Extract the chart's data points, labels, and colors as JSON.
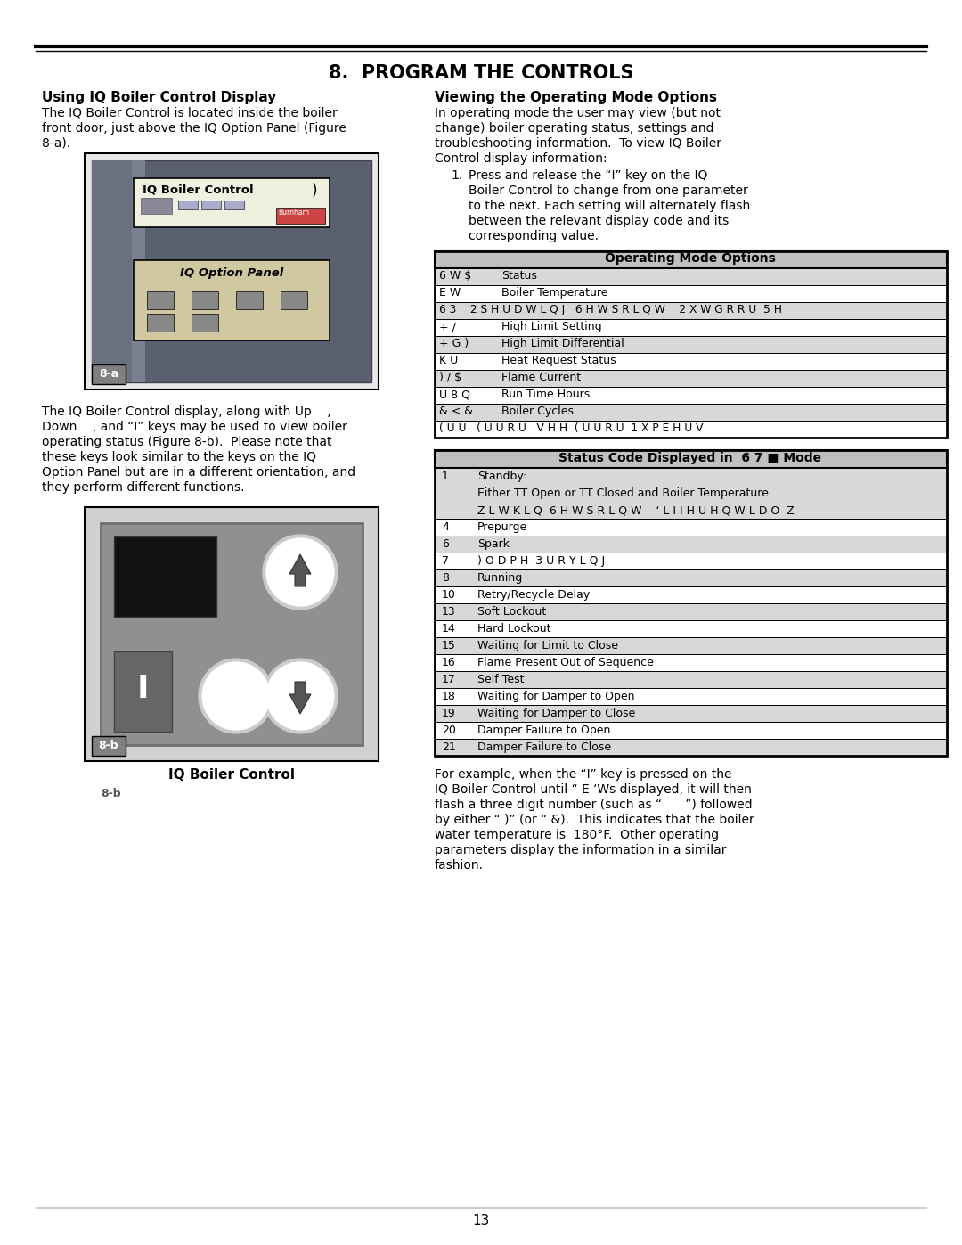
{
  "title": "8.  PROGRAM THE CONTROLS",
  "left_heading": "Using IQ Boiler Control Display",
  "right_heading": "Viewing the Operating Mode Options",
  "left_para1": [
    "The IQ Boiler Control is located inside the boiler",
    "front door, just above the IQ Option Panel (Figure",
    "8-a)."
  ],
  "left_para2": [
    "The IQ Boiler Control display, along with Up    ,",
    "Down    , and “I” keys may be used to view boiler",
    "operating status (Figure 8-b).  Please note that",
    "these keys look similar to the keys on the IQ",
    "Option Panel but are in a different orientation, and",
    "they perform different functions."
  ],
  "right_para1": [
    "In operating mode the user may view (but not",
    "change) boiler operating status, settings and",
    "troubleshooting information.  To view IQ Boiler",
    "Control display information:"
  ],
  "right_list1": [
    "Press and release the “I” key on the IQ",
    "Boiler Control to change from one parameter",
    "to the next. Each setting will alternately flash",
    "between the relevant display code and its",
    "corresponding value."
  ],
  "op_mode_title": "Operating Mode Options",
  "op_mode_rows": [
    {
      "code": "6 W $",
      "desc": "Status",
      "shaded": true
    },
    {
      "code": "E W",
      "desc": "Boiler Temperature",
      "shaded": false
    },
    {
      "code": "6 3    2 S H U D W L Q J   6 H W S R L Q W    2 X W G R R U  5 H",
      "desc": "",
      "shaded": true
    },
    {
      "code": "+ /",
      "desc": "High Limit Setting",
      "shaded": false
    },
    {
      "code": "+ G )",
      "desc": "High Limit Differential",
      "shaded": true
    },
    {
      "code": "K U",
      "desc": "Heat Request Status",
      "shaded": false
    },
    {
      "code": ") / $",
      "desc": "Flame Current",
      "shaded": true
    },
    {
      "code": "U 8 Q",
      "desc": "Run Time Hours",
      "shaded": false
    },
    {
      "code": "& < &",
      "desc": "Boiler Cycles",
      "shaded": true
    },
    {
      "code": "( U U   ( U U R U   V H H  ( U U R U  1 X P E H U V",
      "desc": "",
      "shaded": false
    }
  ],
  "status_title": "Status Code Displayed in  6 7 ■ Mode",
  "status_rows": [
    {
      "code": "1",
      "desc": "Standby:\nEither TT Open or TT Closed and Boiler Temperature\nZ L W K L Q  6 H W S R L Q W    ‘ L I I H U H Q W L D O  Z",
      "shaded": true
    },
    {
      "code": "4",
      "desc": "Prepurge",
      "shaded": false
    },
    {
      "code": "6",
      "desc": "Spark",
      "shaded": true
    },
    {
      "code": "7",
      "desc": ") O D P H  3 U R Y L Q J",
      "shaded": false
    },
    {
      "code": "8",
      "desc": "Running",
      "shaded": true
    },
    {
      "code": "10",
      "desc": "Retry/Recycle Delay",
      "shaded": false
    },
    {
      "code": "13",
      "desc": "Soft Lockout",
      "shaded": true
    },
    {
      "code": "14",
      "desc": "Hard Lockout",
      "shaded": false
    },
    {
      "code": "15",
      "desc": "Waiting for Limit to Close",
      "shaded": true
    },
    {
      "code": "16",
      "desc": "Flame Present Out of Sequence",
      "shaded": false
    },
    {
      "code": "17",
      "desc": "Self Test",
      "shaded": true
    },
    {
      "code": "18",
      "desc": "Waiting for Damper to Open",
      "shaded": false
    },
    {
      "code": "19",
      "desc": "Waiting for Damper to Close",
      "shaded": true
    },
    {
      "code": "20",
      "desc": "Damper Failure to Open",
      "shaded": false
    },
    {
      "code": "21",
      "desc": "Damper Failure to Close",
      "shaded": true
    }
  ],
  "right_para2": [
    "For example, when the “I” key is pressed on the",
    "IQ Boiler Control until “ E ‘Ws displayed, it will then",
    "flash a three digit number (such as “      ”) followed",
    "by either “ )” (or “ &).  This indicates that the boiler",
    "water temperature is  180°F.  Other operating",
    "parameters display the information in a similar",
    "fashion."
  ],
  "page_number": "13",
  "label_8a": "8-a",
  "label_8b": "8-b",
  "iq_boiler_control_label": "IQ Boiler Control",
  "bg_color": "#ffffff",
  "shaded_color": "#d8d8d8",
  "table_header_color": "#c0c0c0",
  "border_color": "#000000"
}
